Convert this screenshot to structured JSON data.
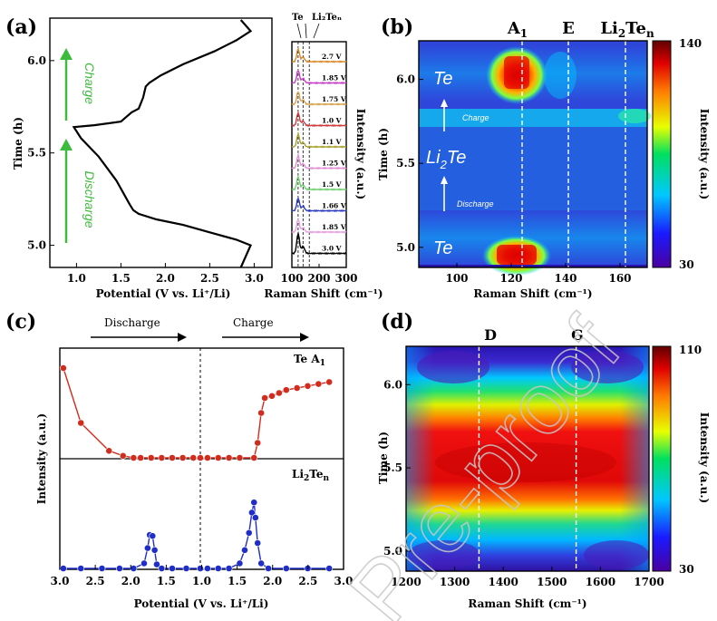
{
  "panels": {
    "a": {
      "label": "(a)"
    },
    "b": {
      "label": "(b)"
    },
    "c": {
      "label": "(c)"
    },
    "d": {
      "label": "(d)"
    }
  },
  "watermark": "Pre-proof",
  "colors": {
    "black": "#000000",
    "arrow_green": "#3dbb3d",
    "c_red": "#d22c1e",
    "c_blue": "#1f2ec9",
    "raman_colors": [
      "#d98a2b",
      "#c93ec9",
      "#d6a24a",
      "#d13a3a",
      "#a8a02c",
      "#e08fd6",
      "#6fd16f",
      "#2d3ec4",
      "#e6a0e0",
      "#000000"
    ]
  },
  "chart_data": [
    {
      "panel": "a-left",
      "type": "line",
      "xlabel": "Potential (V vs. Li⁺/Li)",
      "ylabel": "Time (h)",
      "xlim": [
        0.7,
        3.2
      ],
      "ylim": [
        4.88,
        6.23
      ],
      "xticks": [
        "1.0",
        "1.5",
        "2.0",
        "2.5",
        "3.0"
      ],
      "yticks": [
        "5.0",
        "5.5",
        "6.0"
      ],
      "annotations": [
        "Charge",
        "Discharge"
      ],
      "x": [
        2.85,
        2.96,
        2.8,
        2.5,
        2.2,
        1.9,
        1.7,
        1.64,
        1.6,
        1.45,
        1.25,
        1.05,
        0.97,
        1.2,
        1.5,
        1.62,
        1.7,
        1.75,
        1.78,
        1.82,
        1.95,
        2.2,
        2.55,
        2.8,
        2.96,
        2.85
      ],
      "y": [
        4.88,
        5.0,
        5.03,
        5.07,
        5.11,
        5.14,
        5.17,
        5.19,
        5.22,
        5.35,
        5.48,
        5.58,
        5.64,
        5.65,
        5.67,
        5.72,
        5.74,
        5.8,
        5.86,
        5.88,
        5.92,
        5.98,
        6.05,
        6.11,
        6.16,
        6.22
      ]
    },
    {
      "panel": "a-right",
      "type": "line",
      "xlabel": "Raman Shift (cm⁻¹)",
      "ylabel": "Intensity (a.u.)",
      "xlim": [
        100,
        300
      ],
      "xticks": [
        "100",
        "200",
        "300"
      ],
      "ref_lines": [
        {
          "name": "Te",
          "x": 123
        },
        {
          "name": "",
          "x": 141
        },
        {
          "name": "Li₂Teₙ",
          "x": 164
        }
      ],
      "series": [
        {
          "name": "2.7 V"
        },
        {
          "name": "1.85 V"
        },
        {
          "name": "1.75 V"
        },
        {
          "name": "1.0 V"
        },
        {
          "name": "1.1 V"
        },
        {
          "name": "1.25 V"
        },
        {
          "name": "1.5 V"
        },
        {
          "name": "1.66 V"
        },
        {
          "name": "1.85 V"
        },
        {
          "name": "3.0 V"
        }
      ]
    },
    {
      "panel": "b",
      "type": "heatmap",
      "xlabel": "Raman Shift (cm⁻¹)",
      "ylabel": "Time (h)",
      "xlim": [
        86,
        170
      ],
      "ylim": [
        4.88,
        6.23
      ],
      "xticks": [
        "100",
        "120",
        "140",
        "160"
      ],
      "yticks": [
        "5.0",
        "5.5",
        "6.0"
      ],
      "colorbar": {
        "label": "Intensity (a.u.)",
        "min": "30",
        "max": "140"
      },
      "ref_lines": [
        {
          "name": "A₁",
          "x": 124
        },
        {
          "name": "E",
          "x": 141
        },
        {
          "name": "Li₂Teₙ",
          "x": 162
        }
      ],
      "annotations": [
        "Te",
        "Li₂Te",
        "Te",
        "Charge",
        "Discharge"
      ]
    },
    {
      "panel": "c",
      "type": "scatter",
      "xlabel": "Potential (V vs. Li⁺/Li)",
      "ylabel": "Intensity (a.u.)",
      "xticks": [
        "3.0",
        "2.5",
        "2.0",
        "1.5",
        "1.0",
        "1.5",
        "2.0",
        "2.5",
        "3.0"
      ],
      "annotations": [
        "Discharge",
        "Charge"
      ],
      "series": [
        {
          "name": "Te A₁",
          "discharge_x": [
            2.95,
            2.7,
            2.3,
            2.1,
            1.95,
            1.85,
            1.7,
            1.55,
            1.4,
            1.25,
            1.1,
            1.0
          ],
          "discharge_y": [
            0.9,
            0.35,
            0.07,
            0.02,
            0.0,
            0.0,
            0.0,
            0.0,
            0.0,
            0.0,
            0.0,
            0.0
          ],
          "charge_x": [
            1.1,
            1.25,
            1.4,
            1.55,
            1.75,
            1.8,
            1.85,
            1.9,
            2.0,
            2.1,
            2.2,
            2.35,
            2.5,
            2.65,
            2.8
          ],
          "charge_y": [
            0.0,
            0.0,
            0.0,
            0.0,
            0.0,
            0.15,
            0.45,
            0.6,
            0.62,
            0.65,
            0.68,
            0.7,
            0.72,
            0.74,
            0.76
          ]
        },
        {
          "name": "Li₂Teₙ",
          "discharge_x": [
            2.95,
            2.7,
            2.4,
            2.15,
            1.95,
            1.8,
            1.75,
            1.72,
            1.68,
            1.65,
            1.62,
            1.55,
            1.4,
            1.2,
            1.0
          ],
          "discharge_y": [
            0.0,
            0.0,
            0.0,
            0.0,
            0.0,
            0.05,
            0.2,
            0.33,
            0.32,
            0.18,
            0.04,
            0.0,
            0.0,
            0.0,
            0.0
          ],
          "charge_x": [
            1.1,
            1.25,
            1.4,
            1.55,
            1.62,
            1.68,
            1.72,
            1.75,
            1.77,
            1.8,
            1.85,
            1.95,
            2.2,
            2.5,
            2.8
          ],
          "charge_y": [
            0.0,
            0.0,
            0.0,
            0.05,
            0.18,
            0.35,
            0.55,
            0.65,
            0.5,
            0.25,
            0.05,
            0.0,
            0.0,
            0.0,
            0.0
          ]
        }
      ]
    },
    {
      "panel": "d",
      "type": "heatmap",
      "xlabel": "Raman Shift (cm⁻¹)",
      "ylabel": "Time (h)",
      "xlim": [
        1200,
        1700
      ],
      "ylim": [
        4.88,
        6.23
      ],
      "xticks": [
        "1200",
        "1300",
        "1400",
        "1500",
        "1600",
        "1700"
      ],
      "yticks": [
        "5.0",
        "5.5",
        "6.0"
      ],
      "colorbar": {
        "label": "Intensity (a.u.)",
        "min": "30",
        "max": "110"
      },
      "ref_lines": [
        {
          "name": "D",
          "x": 1350
        },
        {
          "name": "G",
          "x": 1550
        }
      ]
    }
  ]
}
